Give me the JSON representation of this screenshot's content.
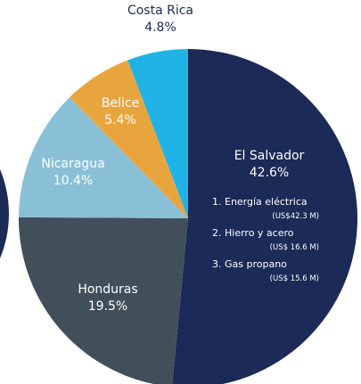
{
  "chart_data": {
    "type": "pie",
    "categories": [
      "El Salvador",
      "Honduras",
      "Nicaragua",
      "Belice",
      "Costa Rica"
    ],
    "values": [
      42.6,
      19.5,
      10.4,
      5.4,
      4.8
    ],
    "value_labels": [
      "42.6%",
      "19.5%",
      "10.4%",
      "5.4%",
      "4.8%"
    ],
    "colors": [
      "#1b2a57",
      "#414f5a",
      "#8ac0d6",
      "#e9a53d",
      "#22b3e6"
    ],
    "annotations": [
      {
        "label": "1. Energía eléctrica",
        "amount": "(US$42.3 M)"
      },
      {
        "label": "2. Hierro y acero",
        "amount": "(US$ 16.6 M)"
      },
      {
        "label": "3. Gas propano",
        "amount": "(US$ 15.6 M)"
      }
    ]
  }
}
